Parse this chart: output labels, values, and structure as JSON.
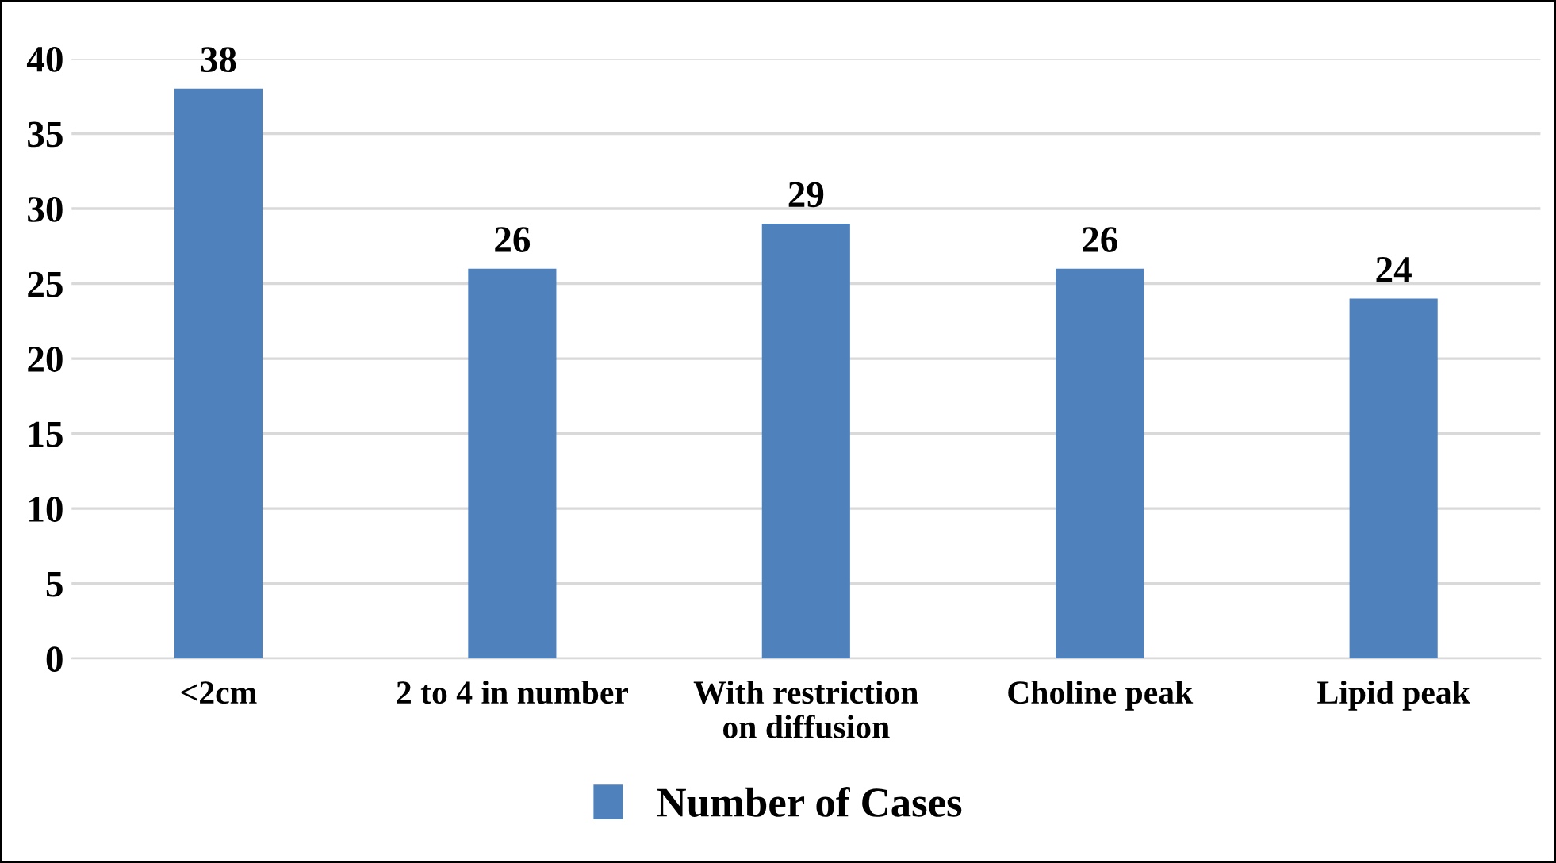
{
  "chart_data": {
    "type": "bar",
    "categories": [
      "<2cm",
      "2 to 4 in number",
      "With restriction\non diffusion",
      "Choline peak",
      "Lipid peak"
    ],
    "series": [
      {
        "name": "Number of Cases",
        "color": "#4f81bd",
        "values": [
          38,
          26,
          29,
          26,
          24
        ]
      }
    ],
    "ylim": [
      0,
      40
    ],
    "yticks": [
      0,
      5,
      10,
      15,
      20,
      25,
      30,
      35,
      40
    ],
    "grid": "y",
    "legend": "bottom",
    "data_labels": true
  }
}
